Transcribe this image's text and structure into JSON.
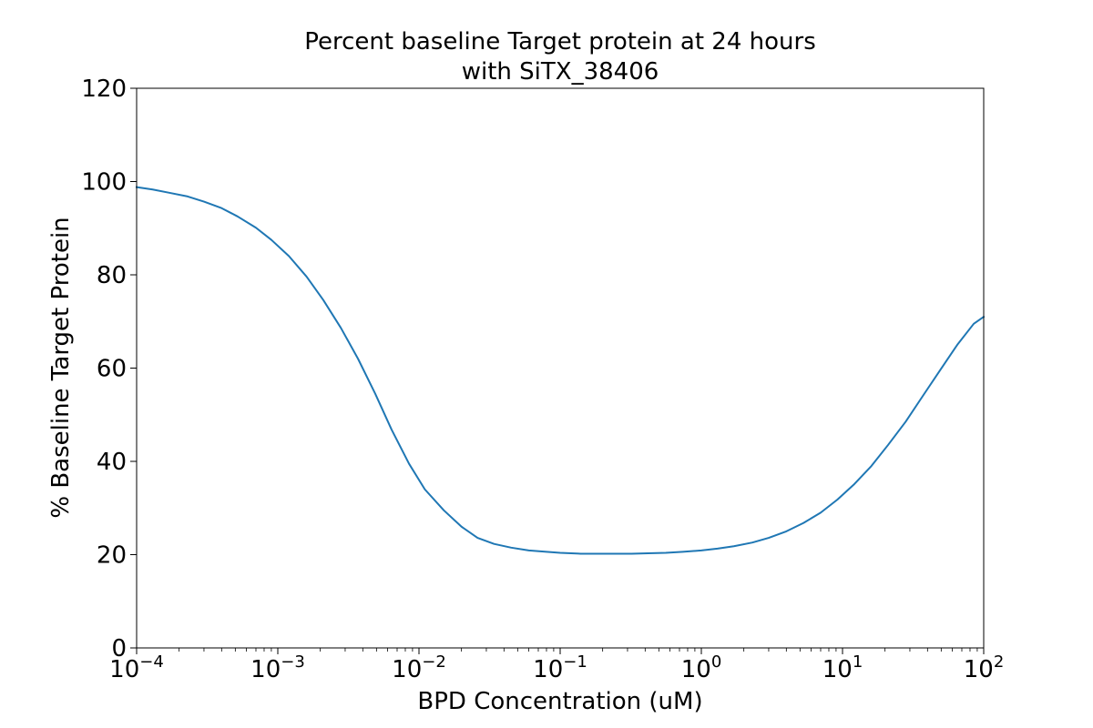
{
  "chart_data": {
    "type": "line",
    "title": "Percent baseline Target protein at 24 hours",
    "subtitle": "with SiTX_38406",
    "xlabel": "BPD Concentration (uM)",
    "ylabel": "% Baseline Target Protein",
    "x_scale": "log",
    "xlim": [
      0.0001,
      100
    ],
    "ylim": [
      0,
      120
    ],
    "grid": false,
    "y_ticks": [
      0,
      20,
      40,
      60,
      80,
      100,
      120
    ],
    "y_tick_labels": [
      "0",
      "20",
      "40",
      "60",
      "80",
      "100",
      "120"
    ],
    "x_ticks": [
      0.0001,
      0.001,
      0.01,
      0.1,
      1,
      10,
      100
    ],
    "x_tick_labels": [
      {
        "base": "10",
        "exp": "−4"
      },
      {
        "base": "10",
        "exp": "−3"
      },
      {
        "base": "10",
        "exp": "−2"
      },
      {
        "base": "10",
        "exp": "−1"
      },
      {
        "base": "10",
        "exp": "0"
      },
      {
        "base": "10",
        "exp": "1"
      },
      {
        "base": "10",
        "exp": "2"
      }
    ],
    "series": [
      {
        "color": "#1f77b4",
        "x": [
          0.0001,
          0.00013,
          0.00017,
          0.00023,
          0.0003,
          0.0004,
          0.00052,
          0.0007,
          0.0009,
          0.0012,
          0.0016,
          0.0021,
          0.0028,
          0.0037,
          0.0049,
          0.0064,
          0.0085,
          0.011,
          0.015,
          0.02,
          0.026,
          0.034,
          0.045,
          0.06,
          0.08,
          0.1,
          0.14,
          0.18,
          0.24,
          0.32,
          0.42,
          0.56,
          0.74,
          1.0,
          1.3,
          1.7,
          2.3,
          3.0,
          4.0,
          5.3,
          7.0,
          9.2,
          12,
          16,
          21,
          28,
          37,
          49,
          65,
          85,
          100
        ],
        "y": [
          98.8,
          98.3,
          97.6,
          96.8,
          95.7,
          94.3,
          92.5,
          90.1,
          87.5,
          84.0,
          79.6,
          74.6,
          68.6,
          62.0,
          54.5,
          46.8,
          39.5,
          34.0,
          29.5,
          26.0,
          23.6,
          22.3,
          21.5,
          20.9,
          20.6,
          20.4,
          20.2,
          20.2,
          20.2,
          20.2,
          20.3,
          20.4,
          20.6,
          20.9,
          21.3,
          21.8,
          22.6,
          23.6,
          25.0,
          26.8,
          29.0,
          31.8,
          35.0,
          39.0,
          43.5,
          48.5,
          54.0,
          59.5,
          65.0,
          69.5,
          71.0
        ]
      }
    ]
  }
}
